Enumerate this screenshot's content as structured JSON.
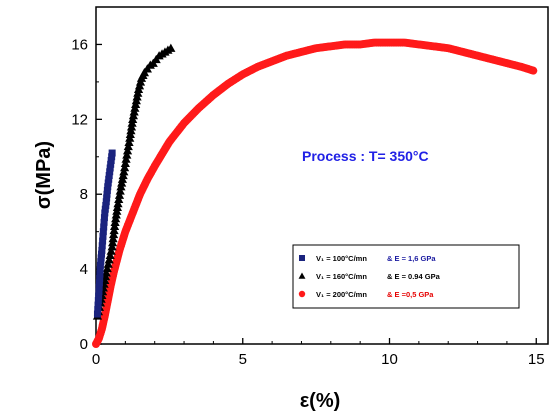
{
  "chart_data": {
    "type": "scatter",
    "xlabel": "ε(%)",
    "ylabel": "σ(MPa)",
    "xlim": [
      0,
      15.4
    ],
    "ylim": [
      0,
      18
    ],
    "xticks": [
      0,
      5,
      10,
      15
    ],
    "yticks": [
      0,
      4,
      8,
      12,
      16
    ],
    "grid": false,
    "legend_position": "bottom-right",
    "annotation": "Process : T= 350°C",
    "series": [
      {
        "legend_parts": [
          "V₁ = 100°C/mn",
          "& E = 1,6 GPa"
        ],
        "marker": "square",
        "color": "#1a237e",
        "label_color": "#1a1aa0",
        "x": [
          0.05,
          0.1,
          0.15,
          0.2,
          0.25,
          0.3,
          0.35,
          0.4,
          0.45,
          0.5,
          0.55
        ],
        "y": [
          1.6,
          2.8,
          4.2,
          5.0,
          6.0,
          7.0,
          7.6,
          8.4,
          9.0,
          9.6,
          10.2
        ]
      },
      {
        "legend_parts": [
          "V₁ = 160°C/mn",
          "& E = 0.94 GPa"
        ],
        "marker": "triangle",
        "color": "#000000",
        "label_color": "#000000",
        "x": [
          0.05,
          0.15,
          0.25,
          0.35,
          0.45,
          0.55,
          0.65,
          0.75,
          0.85,
          0.95,
          1.05,
          1.15,
          1.25,
          1.35,
          1.45,
          1.55,
          1.65,
          1.75,
          1.85,
          1.95,
          2.05,
          2.15,
          2.25,
          2.35,
          2.45,
          2.55
        ],
        "y": [
          1.5,
          2.2,
          3.0,
          3.8,
          4.5,
          5.2,
          6.5,
          7.5,
          8.4,
          9.2,
          10.1,
          11.0,
          12.0,
          12.8,
          13.6,
          14.2,
          14.5,
          14.7,
          14.9,
          15.0,
          15.2,
          15.4,
          15.5,
          15.6,
          15.7,
          15.8
        ]
      },
      {
        "legend_parts": [
          "V₁ = 200°C/mn",
          "& E =0,5 GPa"
        ],
        "marker": "circle",
        "color": "#ff1a1a",
        "label_color": "#e60000",
        "x": [
          0.0,
          0.1,
          0.2,
          0.3,
          0.4,
          0.5,
          0.6,
          0.7,
          0.8,
          0.9,
          1.0,
          1.25,
          1.5,
          1.75,
          2.0,
          2.5,
          3.0,
          3.5,
          4.0,
          4.5,
          5.0,
          5.5,
          6.0,
          6.5,
          7.0,
          7.5,
          8.0,
          8.5,
          9.0,
          9.5,
          10.0,
          10.5,
          11.0,
          11.5,
          12.0,
          12.5,
          13.0,
          13.5,
          14.0,
          14.5,
          14.9
        ],
        "y": [
          0.0,
          0.3,
          0.8,
          1.5,
          2.3,
          3.1,
          3.8,
          4.4,
          5.0,
          5.5,
          6.0,
          7.0,
          8.0,
          8.8,
          9.5,
          10.8,
          11.8,
          12.6,
          13.3,
          13.9,
          14.4,
          14.8,
          15.1,
          15.4,
          15.6,
          15.8,
          15.9,
          16.0,
          16.0,
          16.1,
          16.1,
          16.1,
          16.0,
          15.9,
          15.8,
          15.6,
          15.4,
          15.2,
          15.0,
          14.8,
          14.6
        ]
      }
    ]
  }
}
